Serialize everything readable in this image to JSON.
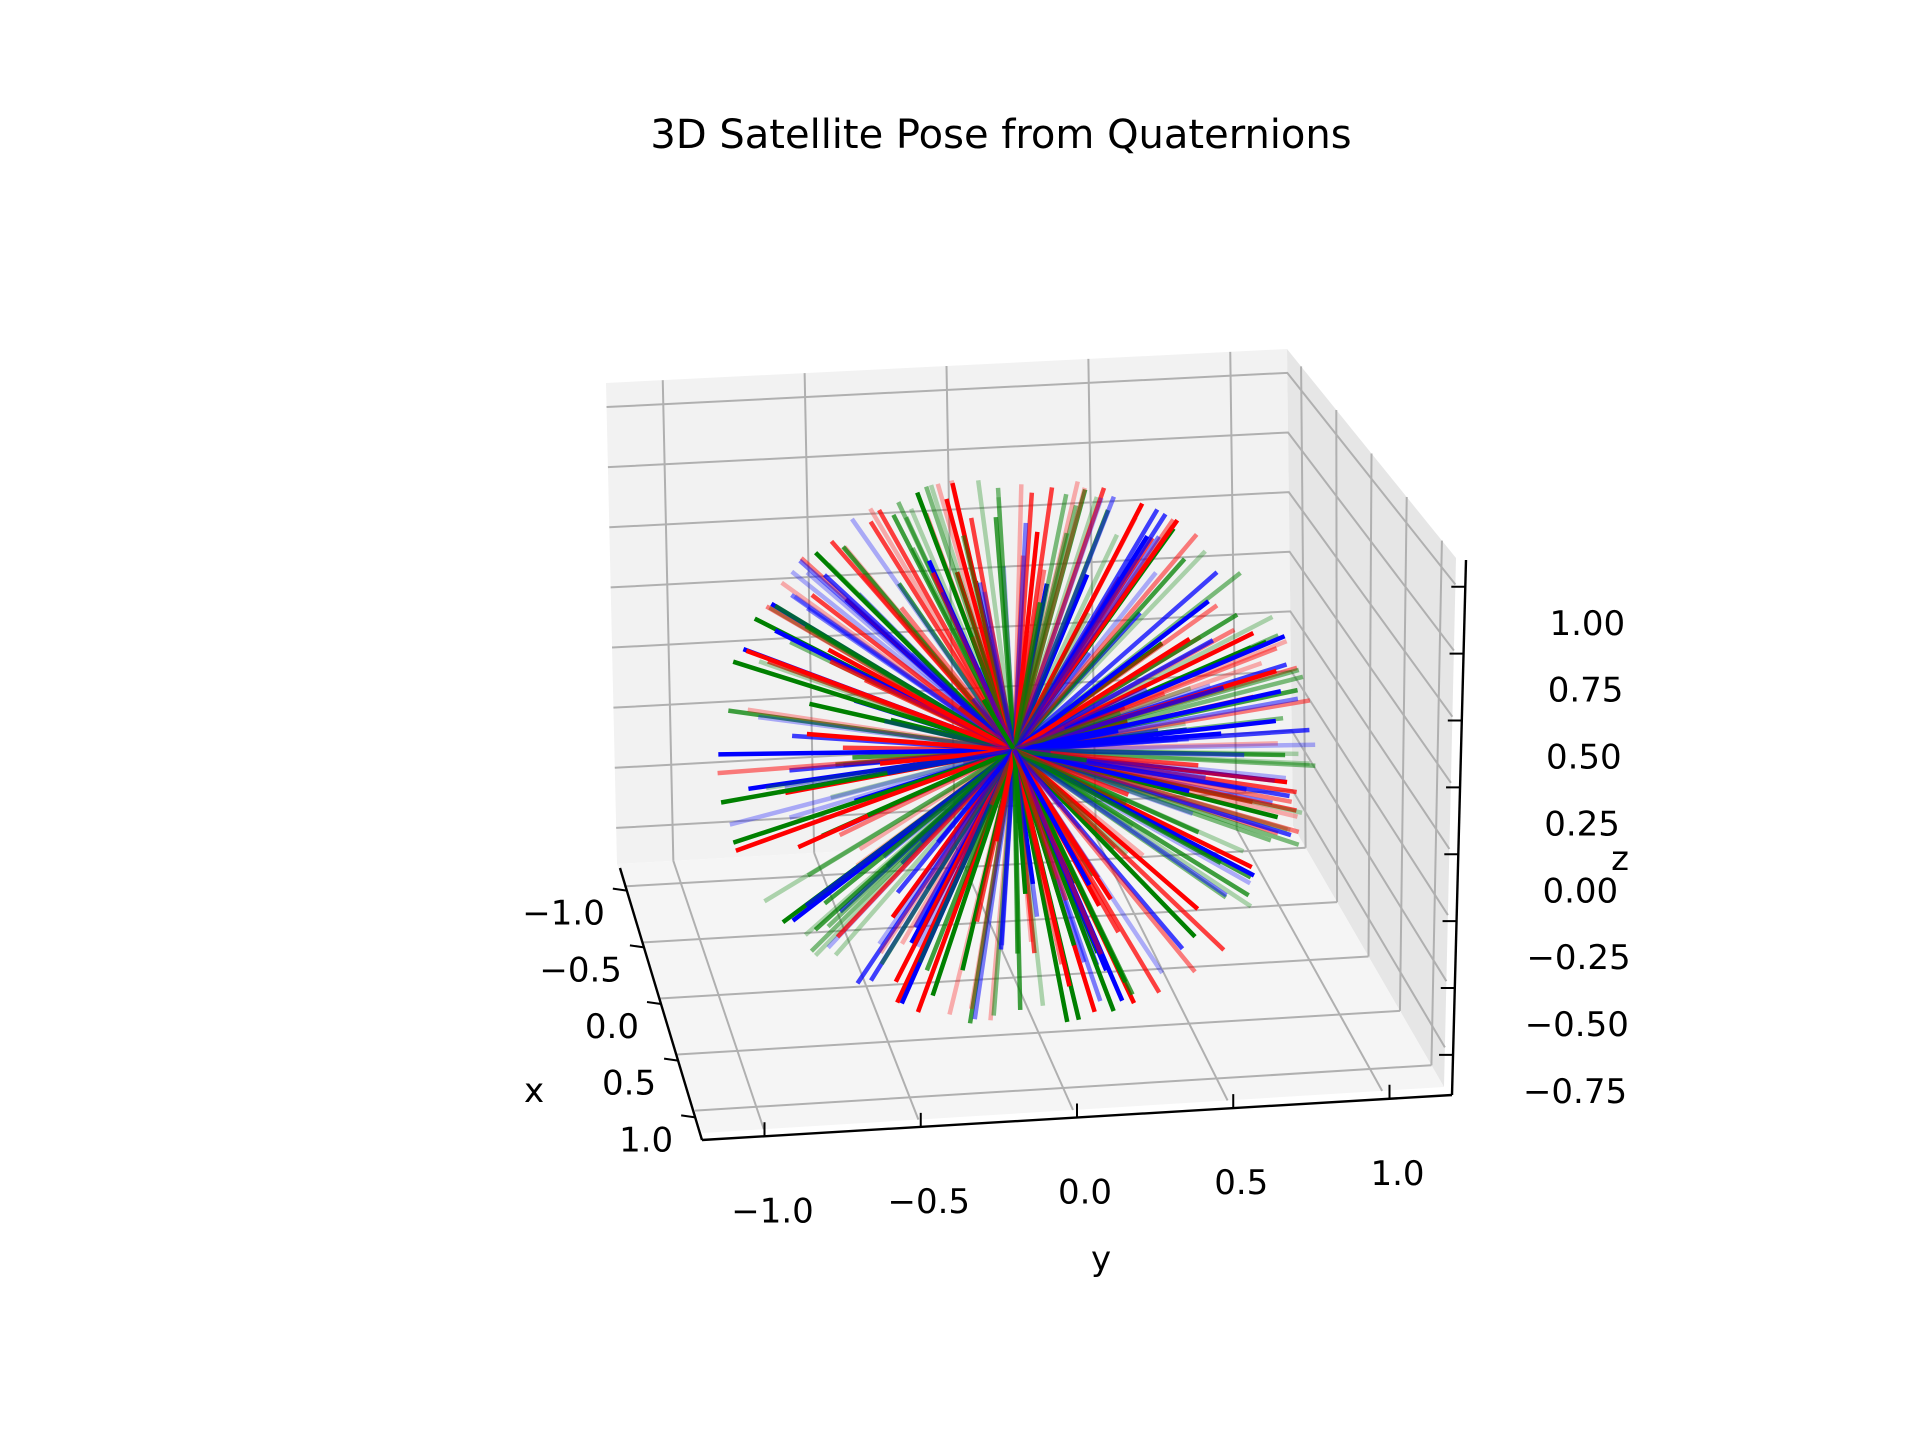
{
  "chart_data": {
    "type": "3d-vector-field",
    "title": "3D Satellite Pose from Quaternions",
    "xlabel": "x",
    "ylabel": "y",
    "zlabel": "z",
    "xticks": [
      "−1.0",
      "−0.5",
      "0.0",
      "0.5",
      "1.0"
    ],
    "yticks": [
      "−1.0",
      "−0.5",
      "0.0",
      "0.5",
      "1.0"
    ],
    "zticks": [
      "1.00",
      "0.75",
      "0.50",
      "0.25",
      "0.00",
      "−0.25",
      "−0.50",
      "−0.75"
    ],
    "xlim": [
      -1.2,
      1.2
    ],
    "ylim": [
      -1.2,
      1.2
    ],
    "zlim": [
      -0.9,
      1.1
    ],
    "grid": true,
    "origin": [
      0,
      0,
      0
    ],
    "vector_length": 1.0,
    "series": [
      {
        "axis": "x",
        "color": "#ff0000"
      },
      {
        "axis": "y",
        "color": "#008000"
      },
      {
        "axis": "z",
        "color": "#0000ff"
      }
    ],
    "n_poses": 120
  }
}
